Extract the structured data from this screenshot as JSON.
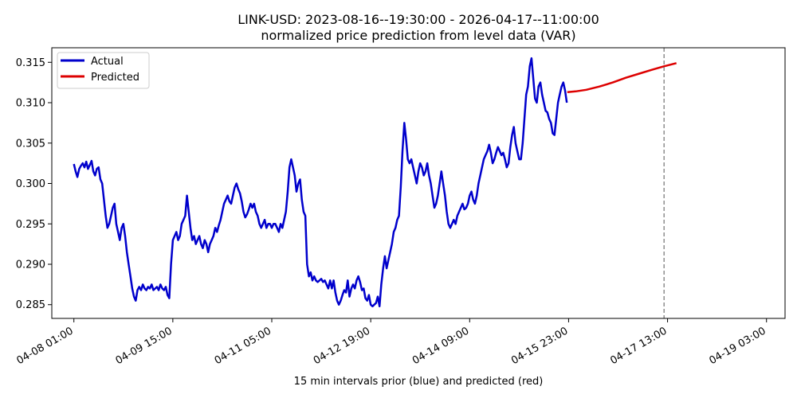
{
  "chart_data": {
    "type": "line",
    "title": "LINK-USD: 2023-08-16--19:30:00 - 2026-04-17--11:00:00",
    "subtitle": "normalized price prediction from level data (VAR)",
    "xlabel": "15 min intervals prior (blue) and predicted (red)",
    "ylabel": "",
    "x_unit": "15-minute intervals",
    "xlim": [
      -50,
      1610
    ],
    "ylim": [
      0.2833,
      0.3168
    ],
    "x_ticks": [
      {
        "x": 0,
        "label": "04-08 01:00"
      },
      {
        "x": 224,
        "label": "04-09 15:00"
      },
      {
        "x": 448,
        "label": "04-11 05:00"
      },
      {
        "x": 672,
        "label": "04-12 19:00"
      },
      {
        "x": 896,
        "label": "04-14 09:00"
      },
      {
        "x": 1120,
        "label": "04-15 23:00"
      },
      {
        "x": 1344,
        "label": "04-17 13:00"
      },
      {
        "x": 1568,
        "label": "04-19 03:00"
      }
    ],
    "y_ticks": [
      {
        "y": 0.285,
        "label": "0.285"
      },
      {
        "y": 0.29,
        "label": "0.290"
      },
      {
        "y": 0.295,
        "label": "0.295"
      },
      {
        "y": 0.3,
        "label": "0.300"
      },
      {
        "y": 0.305,
        "label": "0.305"
      },
      {
        "y": 0.31,
        "label": "0.310"
      },
      {
        "y": 0.315,
        "label": "0.315"
      }
    ],
    "vline_x": 1336,
    "legend_position": "top-left",
    "grid": false,
    "series": [
      {
        "name": "Actual",
        "color": "#0000cc",
        "points": [
          [
            0,
            0.3024
          ],
          [
            4,
            0.3015
          ],
          [
            8,
            0.3008
          ],
          [
            12,
            0.3018
          ],
          [
            16,
            0.3022
          ],
          [
            20,
            0.3025
          ],
          [
            24,
            0.302
          ],
          [
            28,
            0.3027
          ],
          [
            32,
            0.3018
          ],
          [
            36,
            0.3023
          ],
          [
            40,
            0.3028
          ],
          [
            44,
            0.3015
          ],
          [
            48,
            0.301
          ],
          [
            52,
            0.3018
          ],
          [
            56,
            0.302
          ],
          [
            60,
            0.3005
          ],
          [
            64,
            0.3
          ],
          [
            68,
            0.298
          ],
          [
            72,
            0.296
          ],
          [
            76,
            0.2945
          ],
          [
            80,
            0.295
          ],
          [
            84,
            0.296
          ],
          [
            88,
            0.297
          ],
          [
            92,
            0.2975
          ],
          [
            96,
            0.295
          ],
          [
            100,
            0.294
          ],
          [
            104,
            0.293
          ],
          [
            108,
            0.2945
          ],
          [
            112,
            0.295
          ],
          [
            116,
            0.2935
          ],
          [
            120,
            0.2915
          ],
          [
            124,
            0.29
          ],
          [
            128,
            0.2885
          ],
          [
            132,
            0.287
          ],
          [
            136,
            0.286
          ],
          [
            140,
            0.2855
          ],
          [
            144,
            0.2868
          ],
          [
            148,
            0.2872
          ],
          [
            152,
            0.2868
          ],
          [
            156,
            0.2875
          ],
          [
            160,
            0.287
          ],
          [
            164,
            0.2868
          ],
          [
            168,
            0.2872
          ],
          [
            172,
            0.287
          ],
          [
            176,
            0.2875
          ],
          [
            180,
            0.2868
          ],
          [
            184,
            0.287
          ],
          [
            188,
            0.2872
          ],
          [
            192,
            0.2868
          ],
          [
            196,
            0.2875
          ],
          [
            200,
            0.287
          ],
          [
            204,
            0.2868
          ],
          [
            208,
            0.2872
          ],
          [
            212,
            0.2862
          ],
          [
            216,
            0.2858
          ],
          [
            220,
            0.29
          ],
          [
            224,
            0.293
          ],
          [
            228,
            0.2935
          ],
          [
            232,
            0.294
          ],
          [
            236,
            0.293
          ],
          [
            240,
            0.2935
          ],
          [
            244,
            0.295
          ],
          [
            248,
            0.2955
          ],
          [
            252,
            0.296
          ],
          [
            256,
            0.2985
          ],
          [
            260,
            0.2965
          ],
          [
            264,
            0.2945
          ],
          [
            268,
            0.293
          ],
          [
            272,
            0.2935
          ],
          [
            276,
            0.2925
          ],
          [
            280,
            0.293
          ],
          [
            284,
            0.2935
          ],
          [
            288,
            0.2925
          ],
          [
            292,
            0.292
          ],
          [
            296,
            0.293
          ],
          [
            300,
            0.2925
          ],
          [
            304,
            0.2915
          ],
          [
            308,
            0.2925
          ],
          [
            312,
            0.293
          ],
          [
            316,
            0.2935
          ],
          [
            320,
            0.2945
          ],
          [
            324,
            0.294
          ],
          [
            328,
            0.2948
          ],
          [
            332,
            0.2955
          ],
          [
            336,
            0.2965
          ],
          [
            340,
            0.2975
          ],
          [
            344,
            0.298
          ],
          [
            348,
            0.2985
          ],
          [
            352,
            0.2978
          ],
          [
            356,
            0.2975
          ],
          [
            360,
            0.2985
          ],
          [
            364,
            0.2995
          ],
          [
            368,
            0.3
          ],
          [
            372,
            0.2993
          ],
          [
            376,
            0.2988
          ],
          [
            380,
            0.2978
          ],
          [
            384,
            0.2965
          ],
          [
            388,
            0.2958
          ],
          [
            392,
            0.2962
          ],
          [
            396,
            0.2968
          ],
          [
            400,
            0.2975
          ],
          [
            404,
            0.297
          ],
          [
            408,
            0.2975
          ],
          [
            412,
            0.2965
          ],
          [
            416,
            0.296
          ],
          [
            420,
            0.295
          ],
          [
            424,
            0.2945
          ],
          [
            428,
            0.295
          ],
          [
            432,
            0.2955
          ],
          [
            436,
            0.2945
          ],
          [
            440,
            0.295
          ],
          [
            444,
            0.295
          ],
          [
            448,
            0.2945
          ],
          [
            452,
            0.295
          ],
          [
            456,
            0.295
          ],
          [
            460,
            0.2945
          ],
          [
            464,
            0.294
          ],
          [
            468,
            0.295
          ],
          [
            472,
            0.2945
          ],
          [
            476,
            0.2955
          ],
          [
            480,
            0.2965
          ],
          [
            484,
            0.299
          ],
          [
            488,
            0.302
          ],
          [
            492,
            0.303
          ],
          [
            496,
            0.302
          ],
          [
            500,
            0.301
          ],
          [
            504,
            0.299
          ],
          [
            508,
            0.3
          ],
          [
            512,
            0.3005
          ],
          [
            516,
            0.298
          ],
          [
            520,
            0.2965
          ],
          [
            524,
            0.296
          ],
          [
            528,
            0.29
          ],
          [
            532,
            0.2885
          ],
          [
            536,
            0.289
          ],
          [
            540,
            0.288
          ],
          [
            544,
            0.2885
          ],
          [
            548,
            0.288
          ],
          [
            552,
            0.2878
          ],
          [
            556,
            0.288
          ],
          [
            560,
            0.2882
          ],
          [
            564,
            0.2878
          ],
          [
            568,
            0.288
          ],
          [
            572,
            0.2875
          ],
          [
            576,
            0.287
          ],
          [
            580,
            0.288
          ],
          [
            584,
            0.287
          ],
          [
            588,
            0.288
          ],
          [
            592,
            0.2865
          ],
          [
            596,
            0.2855
          ],
          [
            600,
            0.285
          ],
          [
            604,
            0.2855
          ],
          [
            608,
            0.2862
          ],
          [
            612,
            0.2868
          ],
          [
            616,
            0.2865
          ],
          [
            620,
            0.288
          ],
          [
            624,
            0.286
          ],
          [
            628,
            0.287
          ],
          [
            632,
            0.2875
          ],
          [
            636,
            0.287
          ],
          [
            640,
            0.288
          ],
          [
            644,
            0.2885
          ],
          [
            648,
            0.2878
          ],
          [
            652,
            0.2868
          ],
          [
            656,
            0.287
          ],
          [
            660,
            0.2858
          ],
          [
            664,
            0.2855
          ],
          [
            668,
            0.2862
          ],
          [
            672,
            0.285
          ],
          [
            676,
            0.2848
          ],
          [
            680,
            0.285
          ],
          [
            684,
            0.2852
          ],
          [
            688,
            0.286
          ],
          [
            692,
            0.2848
          ],
          [
            696,
            0.2875
          ],
          [
            700,
            0.2895
          ],
          [
            704,
            0.291
          ],
          [
            708,
            0.2895
          ],
          [
            712,
            0.2905
          ],
          [
            716,
            0.2915
          ],
          [
            720,
            0.2925
          ],
          [
            724,
            0.294
          ],
          [
            728,
            0.2945
          ],
          [
            732,
            0.2955
          ],
          [
            736,
            0.296
          ],
          [
            740,
            0.2995
          ],
          [
            744,
            0.304
          ],
          [
            748,
            0.3075
          ],
          [
            752,
            0.3055
          ],
          [
            756,
            0.303
          ],
          [
            760,
            0.3025
          ],
          [
            764,
            0.303
          ],
          [
            768,
            0.302
          ],
          [
            772,
            0.301
          ],
          [
            776,
            0.3
          ],
          [
            780,
            0.3015
          ],
          [
            784,
            0.3025
          ],
          [
            788,
            0.302
          ],
          [
            792,
            0.301
          ],
          [
            796,
            0.3015
          ],
          [
            800,
            0.3025
          ],
          [
            804,
            0.301
          ],
          [
            808,
            0.3
          ],
          [
            812,
            0.2985
          ],
          [
            816,
            0.297
          ],
          [
            820,
            0.2975
          ],
          [
            824,
            0.2985
          ],
          [
            828,
            0.3
          ],
          [
            832,
            0.3015
          ],
          [
            836,
            0.3
          ],
          [
            840,
            0.2985
          ],
          [
            844,
            0.2965
          ],
          [
            848,
            0.295
          ],
          [
            852,
            0.2945
          ],
          [
            856,
            0.295
          ],
          [
            860,
            0.2955
          ],
          [
            864,
            0.295
          ],
          [
            868,
            0.296
          ],
          [
            872,
            0.2965
          ],
          [
            876,
            0.297
          ],
          [
            880,
            0.2975
          ],
          [
            884,
            0.2968
          ],
          [
            888,
            0.297
          ],
          [
            892,
            0.2975
          ],
          [
            896,
            0.2985
          ],
          [
            900,
            0.299
          ],
          [
            904,
            0.298
          ],
          [
            908,
            0.2975
          ],
          [
            912,
            0.2985
          ],
          [
            916,
            0.3
          ],
          [
            920,
            0.301
          ],
          [
            924,
            0.302
          ],
          [
            928,
            0.303
          ],
          [
            932,
            0.3035
          ],
          [
            936,
            0.304
          ],
          [
            940,
            0.3048
          ],
          [
            944,
            0.3038
          ],
          [
            948,
            0.3025
          ],
          [
            952,
            0.303
          ],
          [
            956,
            0.3038
          ],
          [
            960,
            0.3045
          ],
          [
            964,
            0.304
          ],
          [
            968,
            0.3035
          ],
          [
            972,
            0.3038
          ],
          [
            976,
            0.303
          ],
          [
            980,
            0.302
          ],
          [
            984,
            0.3025
          ],
          [
            988,
            0.3045
          ],
          [
            992,
            0.306
          ],
          [
            996,
            0.307
          ],
          [
            1000,
            0.305
          ],
          [
            1004,
            0.304
          ],
          [
            1008,
            0.303
          ],
          [
            1012,
            0.303
          ],
          [
            1016,
            0.305
          ],
          [
            1020,
            0.308
          ],
          [
            1024,
            0.311
          ],
          [
            1028,
            0.312
          ],
          [
            1032,
            0.3145
          ],
          [
            1036,
            0.3155
          ],
          [
            1040,
            0.313
          ],
          [
            1044,
            0.3105
          ],
          [
            1048,
            0.31
          ],
          [
            1052,
            0.312
          ],
          [
            1056,
            0.3125
          ],
          [
            1060,
            0.311
          ],
          [
            1064,
            0.31
          ],
          [
            1068,
            0.309
          ],
          [
            1072,
            0.3088
          ],
          [
            1076,
            0.308
          ],
          [
            1080,
            0.3075
          ],
          [
            1084,
            0.3062
          ],
          [
            1088,
            0.306
          ],
          [
            1092,
            0.308
          ],
          [
            1096,
            0.31
          ],
          [
            1100,
            0.311
          ],
          [
            1104,
            0.312
          ],
          [
            1108,
            0.3125
          ],
          [
            1112,
            0.3115
          ],
          [
            1116,
            0.31
          ]
        ]
      },
      {
        "name": "Predicted",
        "color": "#dd0000",
        "points": [
          [
            1117,
            0.3113
          ],
          [
            1136,
            0.3114
          ],
          [
            1160,
            0.3116
          ],
          [
            1190,
            0.312
          ],
          [
            1220,
            0.3125
          ],
          [
            1250,
            0.3131
          ],
          [
            1280,
            0.3136
          ],
          [
            1310,
            0.3141
          ],
          [
            1336,
            0.3145
          ],
          [
            1364,
            0.3149
          ]
        ]
      }
    ]
  }
}
